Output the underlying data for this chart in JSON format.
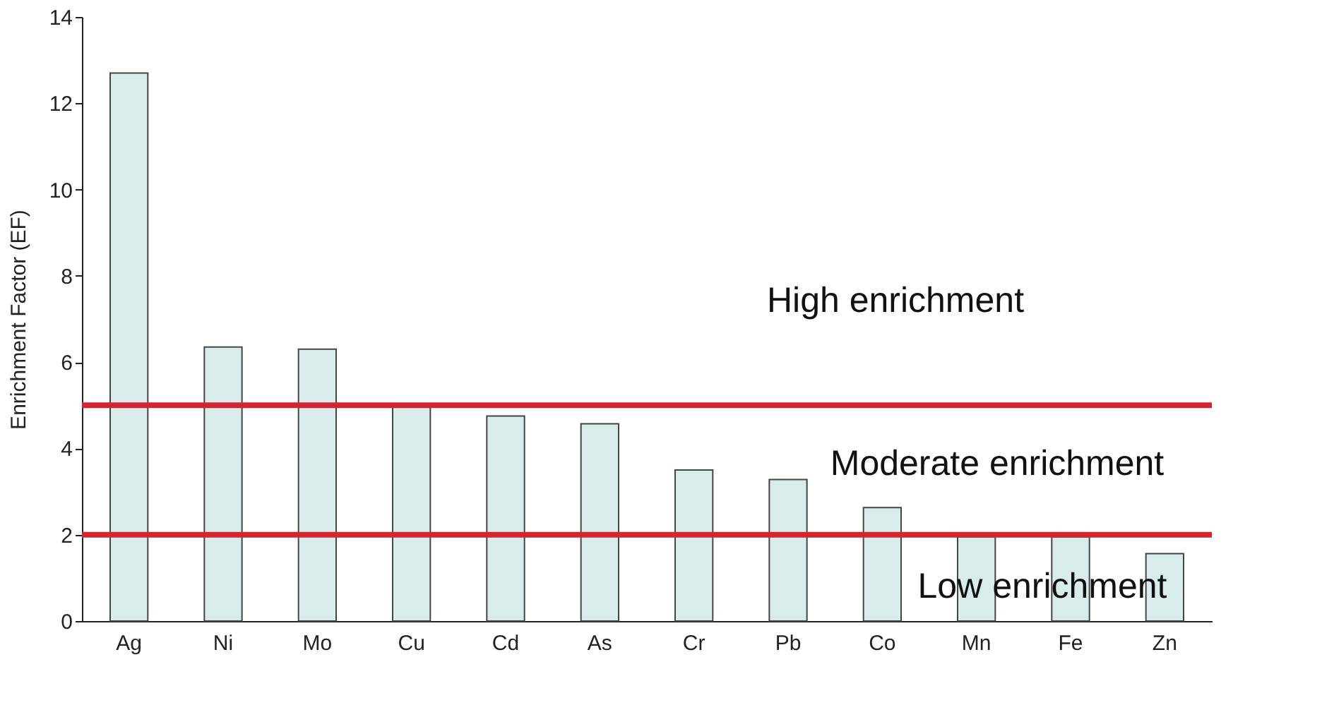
{
  "chart_data": {
    "type": "bar",
    "ylabel": "Enrichment Factor (EF)",
    "categories": [
      "Ag",
      "Ni",
      "Mo",
      "Cu",
      "Cd",
      "As",
      "Cr",
      "Pb",
      "Co",
      "Mn",
      "Fe",
      "Zn"
    ],
    "values": [
      12.7,
      6.35,
      6.3,
      5.0,
      4.75,
      4.57,
      3.5,
      3.28,
      2.63,
      1.95,
      1.95,
      1.56
    ],
    "color": "#d9ecec",
    "ylim": [
      0,
      14
    ],
    "yticks": [
      0,
      2,
      4,
      6,
      8,
      10,
      12,
      14
    ],
    "grid": false,
    "ref_lines": [
      {
        "axis": "y",
        "value": 5,
        "color": "#d3252f"
      },
      {
        "axis": "y",
        "value": 2,
        "color": "#d3252f"
      }
    ],
    "annotations": [
      "High enrichment",
      "Moderate enrichment",
      "Low enrichment"
    ]
  }
}
